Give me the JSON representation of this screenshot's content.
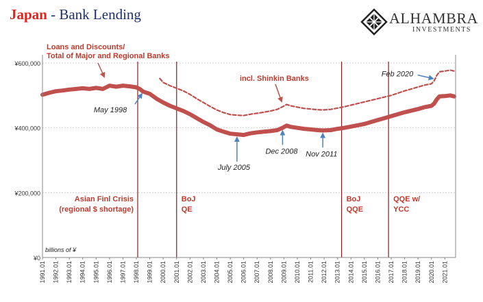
{
  "header": {
    "title_highlight": "Japan",
    "title_rest": " - Bank Lending",
    "brand_name": "ALHAMBRA",
    "brand_sub": "INVESTMENTS",
    "logo_icon": "diamond-lattice-icon"
  },
  "colors": {
    "series": "#c0504d",
    "vline": "#8b1a1a",
    "event_text": "#c0392b",
    "arrow": "#4f81bd",
    "axis_text": "#333333",
    "title_red": "#e3221b",
    "title_navy": "#1f2f6e"
  },
  "chart_data": {
    "type": "line",
    "title": "Japan - Bank Lending",
    "units_note": "billions of ¥",
    "yticks": [
      {
        "value": 0,
        "label": "¥0"
      },
      {
        "value": 200000,
        "label": "¥200,000"
      },
      {
        "value": 400000,
        "label": "¥400,000"
      },
      {
        "value": 600000,
        "label": "¥600,000"
      }
    ],
    "ylim": [
      0,
      600000
    ],
    "xlim": [
      1991.0,
      2021.8
    ],
    "xtick_labels": [
      "1991.01",
      "1992.01",
      "1993.01",
      "1994.01",
      "1995.01",
      "1996.01",
      "1997.01",
      "1998.01",
      "1999.01",
      "2000.01",
      "2001.01",
      "2002.01",
      "2003.01",
      "2004.01",
      "2005.01",
      "2006.01",
      "2007.01",
      "2008.01",
      "2009.01",
      "2010.01",
      "2011.01",
      "2012.01",
      "2013.01",
      "2014.01",
      "2015.01",
      "2016.01",
      "2017.01",
      "2018.01",
      "2019.01",
      "2020.01",
      "2021.01"
    ],
    "series": [
      {
        "name": "Loans and Discounts/ Total of Major and Regional Banks",
        "style": "solid",
        "x": [
          1991.0,
          1991.5,
          1992.0,
          1992.5,
          1993.0,
          1993.5,
          1994.0,
          1994.5,
          1995.0,
          1995.5,
          1996.0,
          1996.5,
          1997.0,
          1997.5,
          1998.0,
          1998.25,
          1998.5,
          1999.0,
          1999.5,
          2000.0,
          2000.5,
          2001.0,
          2001.5,
          2002.0,
          2002.5,
          2003.0,
          2003.5,
          2004.0,
          2004.5,
          2005.0,
          2005.5,
          2006.0,
          2006.5,
          2007.0,
          2007.5,
          2008.0,
          2008.5,
          2008.9,
          2009.2,
          2009.5,
          2010.0,
          2010.5,
          2011.0,
          2011.5,
          2011.9,
          2012.5,
          2013.0,
          2013.5,
          2014.0,
          2014.5,
          2015.0,
          2015.5,
          2016.0,
          2016.5,
          2017.0,
          2017.5,
          2018.0,
          2018.5,
          2019.0,
          2019.5,
          2020.0,
          2020.2,
          2020.4,
          2020.6,
          2021.0,
          2021.4,
          2021.7
        ],
        "values": [
          502000,
          508000,
          513000,
          515000,
          518000,
          520000,
          522000,
          520000,
          523000,
          520000,
          530000,
          527000,
          530000,
          528000,
          525000,
          520000,
          512000,
          505000,
          490000,
          478000,
          468000,
          460000,
          452000,
          442000,
          430000,
          418000,
          408000,
          395000,
          388000,
          382000,
          380000,
          378000,
          383000,
          386000,
          388000,
          390000,
          393000,
          400000,
          407000,
          403000,
          400000,
          397000,
          395000,
          393000,
          392000,
          393000,
          397000,
          400000,
          404000,
          408000,
          412000,
          418000,
          424000,
          430000,
          436000,
          442000,
          448000,
          453000,
          458000,
          464000,
          468000,
          475000,
          488000,
          497000,
          498000,
          500000,
          497000
        ]
      },
      {
        "name": "incl. Shinkin Banks",
        "style": "dashed",
        "x": [
          1999.75,
          2000.0,
          2000.5,
          2001.0,
          2001.5,
          2002.0,
          2002.5,
          2003.0,
          2003.5,
          2004.0,
          2004.5,
          2005.0,
          2005.5,
          2006.0,
          2006.5,
          2007.0,
          2007.5,
          2008.0,
          2008.5,
          2008.9,
          2009.2,
          2009.5,
          2010.0,
          2010.5,
          2011.0,
          2011.5,
          2011.9,
          2012.5,
          2013.0,
          2013.5,
          2014.0,
          2014.5,
          2015.0,
          2015.5,
          2016.0,
          2016.5,
          2017.0,
          2017.5,
          2018.0,
          2018.5,
          2019.0,
          2019.5,
          2020.0,
          2020.2,
          2020.4,
          2020.6,
          2021.0,
          2021.4,
          2021.7
        ],
        "values": [
          552000,
          540000,
          530000,
          522000,
          514000,
          503000,
          490000,
          478000,
          466000,
          455000,
          447000,
          441000,
          439000,
          438000,
          442000,
          445000,
          448000,
          452000,
          457000,
          465000,
          472000,
          468000,
          464000,
          460000,
          458000,
          456000,
          455000,
          457000,
          461000,
          465000,
          470000,
          475000,
          480000,
          485000,
          490000,
          495000,
          500000,
          507000,
          514000,
          520000,
          526000,
          532000,
          536000,
          545000,
          562000,
          573000,
          575000,
          578000,
          575000
        ]
      }
    ],
    "vlines": [
      1998.1,
      2001.0,
      2013.3,
      2016.8
    ],
    "event_labels": [
      {
        "lines": [
          "Asian Finl Crisis",
          "(regional $ shortage)"
        ],
        "x": 1998.1,
        "align": "end"
      },
      {
        "lines": [
          "BoJ",
          "QE"
        ],
        "x": 2001.0,
        "align": "start"
      },
      {
        "lines": [
          "BoJ",
          "QQE"
        ],
        "x": 2013.3,
        "align": "start"
      },
      {
        "lines": [
          "QQE w/",
          "YCC"
        ],
        "x": 2016.8,
        "align": "start"
      }
    ],
    "annotations": [
      {
        "text": "May 1998",
        "x": 1998.4,
        "y": 515000
      },
      {
        "text": "July 2005",
        "x": 2005.5,
        "y": 380000
      },
      {
        "text": "Dec 2008",
        "x": 2008.9,
        "y": 400000
      },
      {
        "text": "Nov 2011",
        "x": 2011.9,
        "y": 392000
      },
      {
        "text": "Feb 2020",
        "x": 2020.1,
        "y": 550000
      }
    ]
  }
}
